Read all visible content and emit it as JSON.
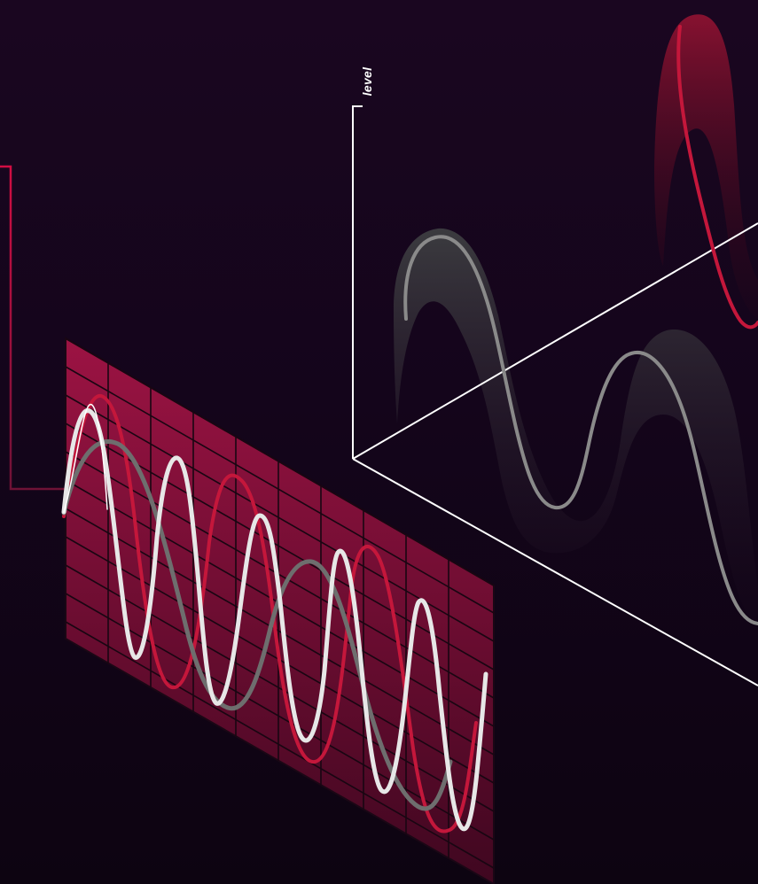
{
  "illustration": {
    "axis_label": "level",
    "colors": {
      "background": "#160619",
      "red_wave": "#c4173b",
      "gray_wave": "#8c8c8c",
      "white_wave": "#d9d9d9",
      "axis_line": "#ffffff",
      "grid_panel": "#7a0d35"
    }
  }
}
